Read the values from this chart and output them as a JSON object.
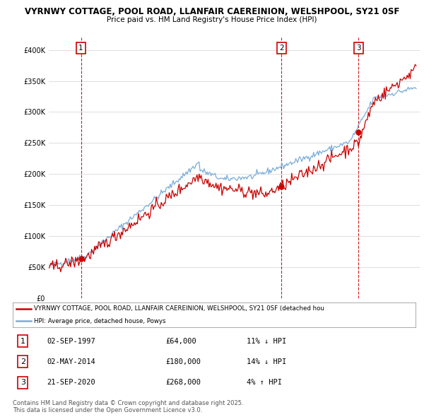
{
  "title_line1": "VYRNWY COTTAGE, POOL ROAD, LLANFAIR CAEREINION, WELSHPOOL, SY21 0SF",
  "title_line2": "Price paid vs. HM Land Registry's House Price Index (HPI)",
  "property_color": "#cc0000",
  "hpi_color": "#7aacda",
  "background_color": "#ffffff",
  "ylim": [
    0,
    420000
  ],
  "yticks": [
    0,
    50000,
    100000,
    150000,
    200000,
    250000,
    300000,
    350000,
    400000
  ],
  "transactions": [
    {
      "label": "1",
      "date": "02-SEP-1997",
      "price": 64000,
      "pct": "11%",
      "dir": "↓"
    },
    {
      "label": "2",
      "date": "02-MAY-2014",
      "price": 180000,
      "pct": "14%",
      "dir": "↓"
    },
    {
      "label": "3",
      "date": "21-SEP-2020",
      "price": 268000,
      "pct": "4%",
      "dir": "↑"
    }
  ],
  "legend_property": "VYRNWY COTTAGE, POOL ROAD, LLANFAIR CAEREINION, WELSHPOOL, SY21 0SF (detached hou",
  "legend_hpi": "HPI: Average price, detached house, Powys",
  "footer": "Contains HM Land Registry data © Crown copyright and database right 2025.\nThis data is licensed under the Open Government Licence v3.0.",
  "transaction_years": [
    1997.67,
    2014.33,
    2020.72
  ],
  "transaction_prices": [
    64000,
    180000,
    268000
  ]
}
